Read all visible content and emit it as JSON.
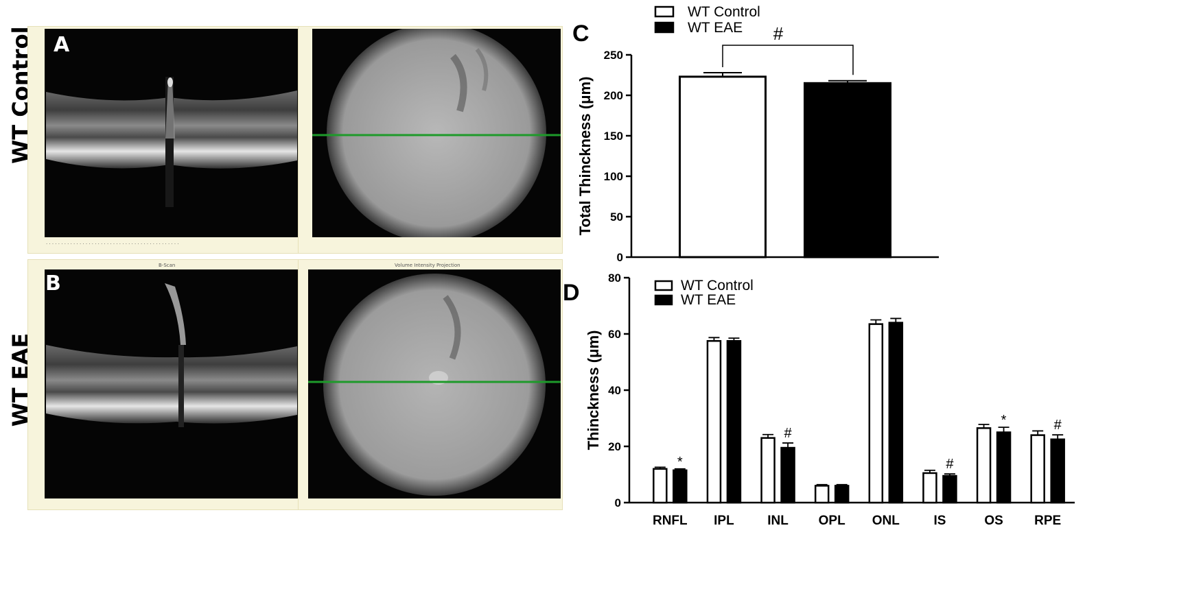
{
  "image_panels": {
    "row_labels": [
      "WT Control",
      "WT EAE"
    ],
    "panel_labels": {
      "a": "A",
      "b": "B"
    },
    "b_titles": [
      "B-Scan",
      "Volume Intensity Projection"
    ]
  },
  "chart_data": [
    {
      "type": "bar",
      "panel_label": "C",
      "categories": [
        "WT Control",
        "WT EAE"
      ],
      "values": [
        223,
        215
      ],
      "errors": [
        5,
        3
      ],
      "ylabel": "Total Thinckness  (μm)",
      "ylim": [
        0,
        250
      ],
      "yticks": [
        0,
        50,
        100,
        150,
        200,
        250
      ],
      "legend": [
        "WT Control",
        "WT EAE"
      ],
      "legend_position": "top",
      "annotation": "#",
      "colors": {
        "control": "#ffffff",
        "eae": "#000000"
      }
    },
    {
      "type": "bar",
      "panel_label": "D",
      "categories": [
        "RNFL",
        "IPL",
        "INL",
        "OPL",
        "ONL",
        "IS",
        "OS",
        "RPE"
      ],
      "series": [
        {
          "name": "WT Control",
          "values": [
            12,
            57.5,
            23,
            6,
            63.5,
            10.5,
            26.5,
            24
          ],
          "errors": [
            0.6,
            1.2,
            1.2,
            0.4,
            1.5,
            1.0,
            1.3,
            1.5
          ]
        },
        {
          "name": "WT EAE",
          "values": [
            11.5,
            57.5,
            19.5,
            6,
            64,
            9.5,
            25,
            22.5
          ],
          "errors": [
            0.5,
            1.0,
            1.7,
            0.4,
            1.5,
            0.7,
            1.8,
            1.6
          ]
        }
      ],
      "markers": [
        "*",
        "",
        "#",
        "",
        "",
        "#",
        "*",
        "#"
      ],
      "ylabel": "Thinckness  (μm)",
      "ylim": [
        0,
        80
      ],
      "yticks": [
        0,
        20,
        40,
        60,
        80
      ],
      "legend_position": "top-left",
      "colors": {
        "control": "#ffffff",
        "eae": "#000000"
      }
    }
  ]
}
